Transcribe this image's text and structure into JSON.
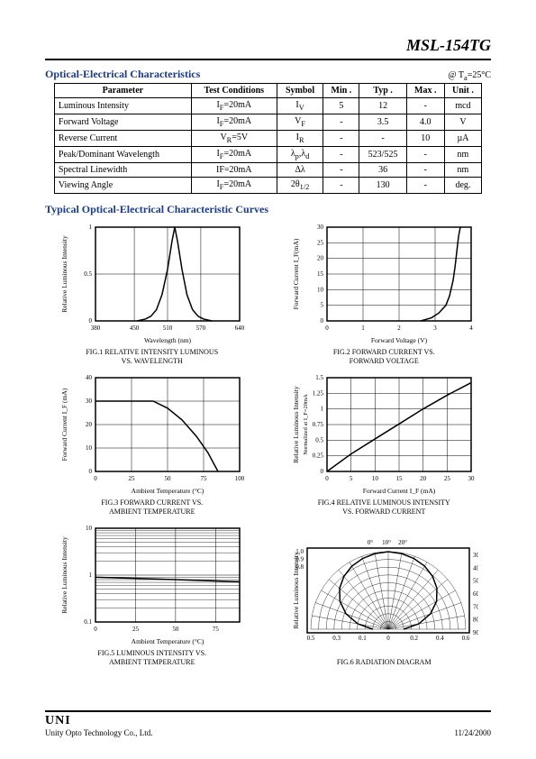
{
  "part_number": "MSL-154TG",
  "section1_title": "Optical-Electrical Characteristics",
  "condition_prefix": "@  T",
  "condition_sub": "a",
  "condition_suffix": "=25°C",
  "section2_title": "Typical  Optical-Electrical Characteristic Curves",
  "table": {
    "headers": [
      "Parameter",
      "Test Conditions",
      "Symbol",
      "Min .",
      "Typ .",
      "Max .",
      "Unit ."
    ],
    "rows": [
      [
        "Luminous Intensity",
        "I_F=20mA",
        "I_V",
        "5",
        "12",
        "-",
        "mcd"
      ],
      [
        "Forward Voltage",
        "I_F=20mA",
        "V_F",
        "-",
        "3.5",
        "4.0",
        "V"
      ],
      [
        "Reverse Current",
        "V_R=5V",
        "I_R",
        "-",
        "-",
        "10",
        "µA"
      ],
      [
        "Peak/Dominant Wavelength",
        "I_F=20mA",
        "λ_p,λ_d",
        "-",
        "523/525",
        "-",
        "nm"
      ],
      [
        "Spectral Linewidth",
        "IF=20mA",
        "Δλ",
        "-",
        "36",
        "-",
        "nm"
      ],
      [
        "Viewing Angle",
        "I_F=20mA",
        "2θ_1/2",
        "-",
        "130",
        "-",
        "deg."
      ]
    ]
  },
  "fig1": {
    "caption_line1": "FIG.1 RELATIVE INTENSITY LUMINOUS",
    "caption_line2": "VS. WAVELENGTH",
    "xlabel": "Wavelength (nm)",
    "ylabel": "Relative Luminous Intensity",
    "xlim": [
      380,
      640
    ],
    "xticks": [
      380,
      450,
      510,
      570,
      640
    ],
    "ylim": [
      0,
      1
    ],
    "yticks": [
      0,
      0.5,
      1
    ],
    "grid_color": "#000000",
    "line_color": "#000000",
    "line_width": 1.5,
    "background": "#ffffff",
    "data": [
      [
        455,
        0
      ],
      [
        470,
        0.02
      ],
      [
        480,
        0.05
      ],
      [
        490,
        0.12
      ],
      [
        500,
        0.28
      ],
      [
        510,
        0.55
      ],
      [
        518,
        0.85
      ],
      [
        523,
        1.0
      ],
      [
        528,
        0.85
      ],
      [
        536,
        0.55
      ],
      [
        545,
        0.28
      ],
      [
        555,
        0.12
      ],
      [
        565,
        0.05
      ],
      [
        575,
        0.02
      ],
      [
        590,
        0
      ]
    ]
  },
  "fig2": {
    "caption_line1": "FIG.2 FORWARD CURRENT VS.",
    "caption_line2": "FORWARD VOLTAGE",
    "xlabel": "Forward Voltage (V)",
    "ylabel": "Forward Current I_F(mA)",
    "xlim": [
      0,
      4
    ],
    "xticks": [
      0,
      1,
      2,
      3,
      4
    ],
    "ylim": [
      0,
      30
    ],
    "yticks": [
      0,
      5,
      10,
      15,
      20,
      25,
      30
    ],
    "grid_color": "#000000",
    "line_color": "#000000",
    "line_width": 1.5,
    "background": "#ffffff",
    "data": [
      [
        2.6,
        0
      ],
      [
        2.9,
        1
      ],
      [
        3.1,
        2.5
      ],
      [
        3.3,
        5
      ],
      [
        3.4,
        8
      ],
      [
        3.5,
        13
      ],
      [
        3.55,
        17
      ],
      [
        3.6,
        22
      ],
      [
        3.65,
        27
      ],
      [
        3.7,
        30
      ]
    ]
  },
  "fig3": {
    "caption_line1": "FIG.3 FORWARD  CURRENT  VS.",
    "caption_line2": "AMBIENT TEMPERATURE",
    "xlabel": "Ambient Temperature (°C)",
    "ylabel": "Forward Current I_F (mA)",
    "xlim": [
      0,
      100
    ],
    "xticks": [
      0,
      25,
      50,
      75,
      100
    ],
    "ylim": [
      0,
      40
    ],
    "yticks": [
      0,
      10,
      20,
      30,
      40
    ],
    "grid_color": "#000000",
    "line_color": "#000000",
    "line_width": 1.5,
    "background": "#ffffff",
    "data": [
      [
        0,
        30
      ],
      [
        25,
        30
      ],
      [
        40,
        30
      ],
      [
        50,
        27
      ],
      [
        60,
        22
      ],
      [
        70,
        15
      ],
      [
        78,
        8
      ],
      [
        85,
        0
      ]
    ]
  },
  "fig4": {
    "caption_line1": "FIG.4 RELATIVE LUMINOUS INTENSITY",
    "caption_line2": "VS. FORWARD CURRENT",
    "xlabel": "Forward Current I_F (mA)",
    "ylabel": "Relative Luminous Intensity\nNormalized at I_F=20mA",
    "xlim": [
      0,
      30
    ],
    "xticks": [
      0,
      5,
      10,
      15,
      20,
      25,
      30
    ],
    "ylim": [
      0,
      1.5
    ],
    "yticks": [
      0,
      0.25,
      0.5,
      0.75,
      1,
      1.25,
      1.5
    ],
    "grid_color": "#000000",
    "line_color": "#000000",
    "line_width": 1.5,
    "background": "#ffffff",
    "data": [
      [
        0,
        0
      ],
      [
        5,
        0.28
      ],
      [
        10,
        0.52
      ],
      [
        15,
        0.76
      ],
      [
        20,
        1.0
      ],
      [
        25,
        1.22
      ],
      [
        30,
        1.42
      ]
    ]
  },
  "fig5": {
    "caption_line1": "FIG.5 LUMINOUS INTENSITY VS.",
    "caption_line2": "AMBIENT TEMPERATURE",
    "xlabel": "Ambient Temperature (°C)",
    "ylabel": "Relative Luminous Intensity",
    "xlim": [
      0,
      90
    ],
    "xticks": [
      0,
      25,
      50,
      75
    ],
    "ylim": [
      0.1,
      10
    ],
    "yticks": [
      0.1,
      1,
      10
    ],
    "yscale": "log",
    "grid_color": "#000000",
    "line_color": "#000000",
    "line_width": 1.5,
    "background": "#ffffff",
    "data": [
      [
        0,
        0.9
      ],
      [
        25,
        0.85
      ],
      [
        50,
        0.8
      ],
      [
        75,
        0.75
      ],
      [
        90,
        0.72
      ]
    ]
  },
  "fig6": {
    "caption_line1": "FIG.6 RADIATION DIAGRAM",
    "ylabel": "Relative Luminous Intensity",
    "angles": [
      0,
      10,
      20,
      30,
      40,
      50,
      60,
      70,
      80,
      90
    ],
    "radial_ticks": [
      0.8,
      0.9,
      1.0
    ],
    "x_bottom_ticks": [
      0.5,
      0.3,
      0.1,
      0,
      0.2,
      0.4,
      0.6
    ],
    "grid_color": "#000000",
    "line_color": "#000000",
    "background": "#ffffff",
    "pattern": [
      [
        0,
        1.0
      ],
      [
        10,
        0.99
      ],
      [
        20,
        0.97
      ],
      [
        30,
        0.94
      ],
      [
        40,
        0.89
      ],
      [
        50,
        0.82
      ],
      [
        60,
        0.72
      ],
      [
        70,
        0.58
      ],
      [
        80,
        0.4
      ],
      [
        90,
        0.2
      ]
    ]
  },
  "footer": {
    "logo_text": "UNI",
    "company": "Unity Opto Technology Co., Ltd.",
    "date": "11/24/2000"
  },
  "colors": {
    "text": "#000000",
    "heading": "#1a3a8a",
    "border": "#000000",
    "bg": "#ffffff"
  },
  "fonts": {
    "body_family": "Times New Roman",
    "title_size_pt": 18,
    "heading_size_pt": 12,
    "table_size_pt": 10,
    "caption_size_pt": 8
  }
}
